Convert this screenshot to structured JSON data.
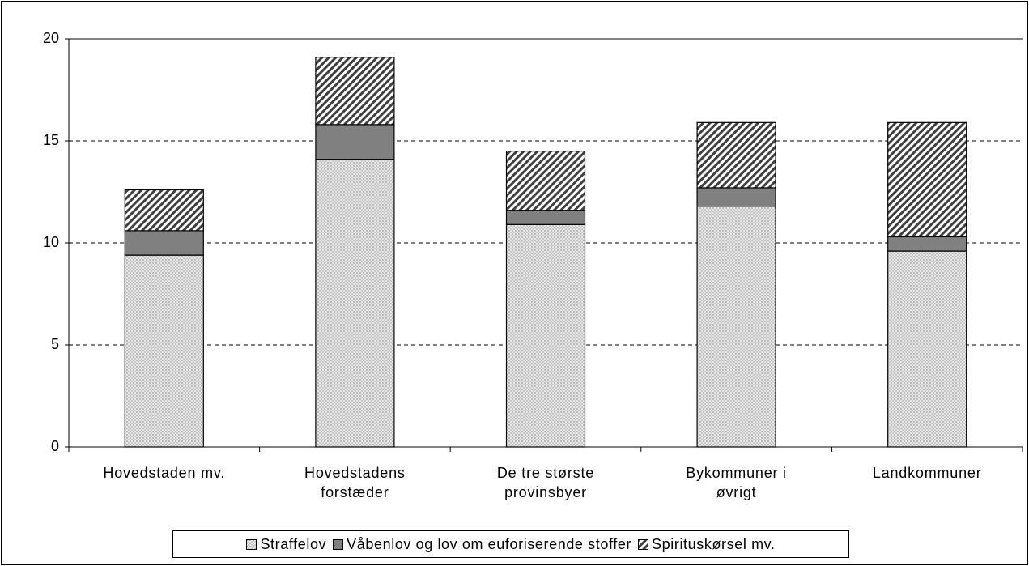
{
  "chart_data": {
    "type": "stacked-bar",
    "categories": [
      "Hovedstaden mv.",
      "Hovedstadens forstæder",
      "De tre største provinsbyer",
      "Bykommuner i øvrigt",
      "Landkommuner"
    ],
    "series": [
      {
        "name": "Straffelov",
        "color": "#d4d4d4",
        "pattern": "dots",
        "values": [
          9.4,
          14.1,
          10.9,
          11.8,
          9.6
        ]
      },
      {
        "name": "Våbenlov og lov om euforiserende stoffer",
        "color": "#808080",
        "pattern": "solid",
        "values": [
          1.2,
          1.7,
          0.7,
          0.9,
          0.7
        ]
      },
      {
        "name": "Spirituskørsel mv.",
        "color": "#404040",
        "pattern": "hatch",
        "values": [
          2.0,
          3.3,
          2.9,
          3.2,
          5.6
        ]
      }
    ],
    "ylim": [
      0,
      20
    ],
    "yticks": [
      0,
      5,
      10,
      15,
      20
    ],
    "grid": true,
    "legend": "bottom"
  }
}
